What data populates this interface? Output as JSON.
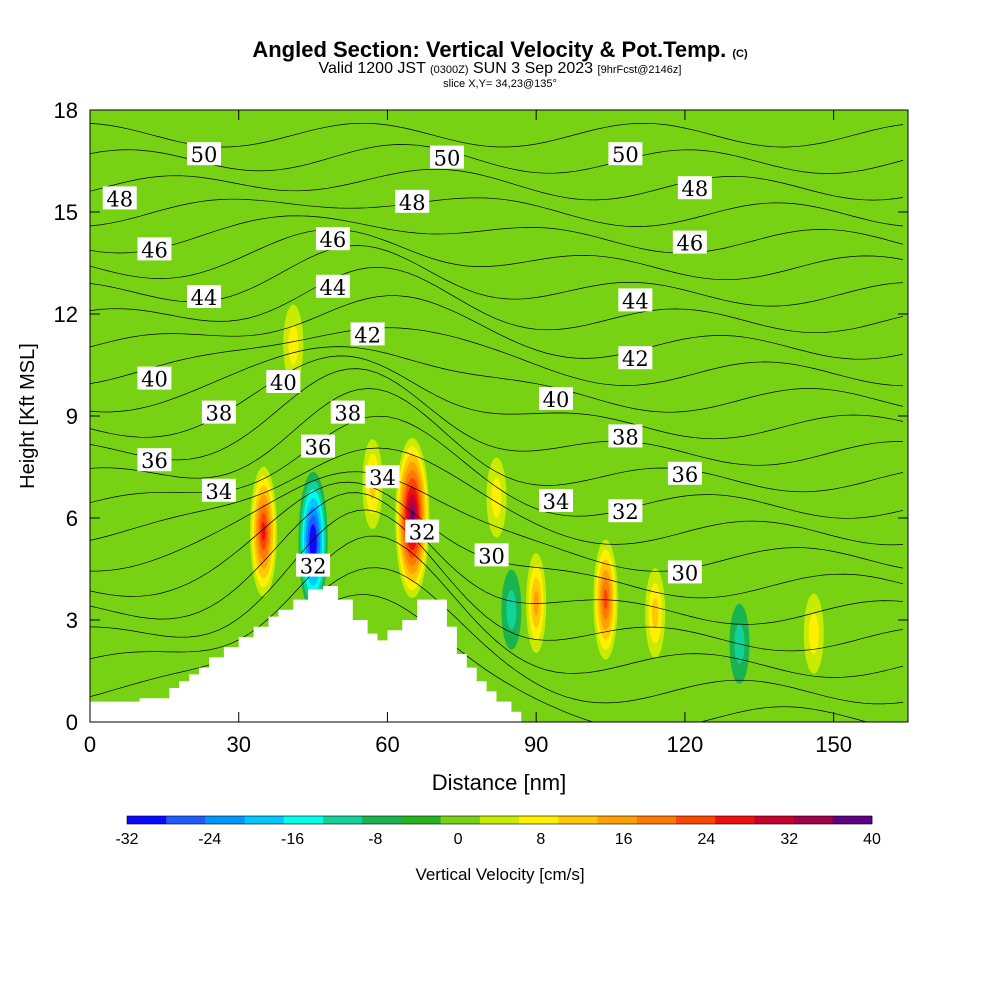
{
  "header": {
    "title": "Angled Section: Vertical Velocity & Pot.Temp.",
    "title_mark": "(C)",
    "subtitle_pre": "Valid 1200 JST",
    "subtitle_utc": "(0300Z)",
    "subtitle_date": "SUN 3 Sep 2023",
    "subtitle_fcst": "[9hrFcst@2146z]",
    "slice": "slice X,Y= 34,23@135°"
  },
  "chart_data": {
    "type": "heatmap",
    "xlabel": "Distance [nm]",
    "ylabel": "Height [Kft MSL]",
    "xlim": [
      0,
      165
    ],
    "ylim": [
      0,
      18
    ],
    "x_ticks": [
      0,
      30,
      60,
      90,
      120,
      150
    ],
    "y_ticks": [
      0,
      3,
      6,
      9,
      12,
      15,
      18
    ],
    "colorbar": {
      "label": "Vertical Velocity [cm/s]",
      "tick_labels": [
        "-32",
        "-24",
        "-16",
        "-8",
        "0",
        "8",
        "16",
        "24",
        "32",
        "40"
      ],
      "levels": [
        -32,
        -28,
        -24,
        -20,
        -16,
        -12,
        -8,
        -4,
        0,
        4,
        8,
        12,
        16,
        20,
        24,
        28,
        32,
        36,
        40
      ],
      "colors": [
        "#0a0aff",
        "#1e5cff",
        "#0096ff",
        "#00c8ff",
        "#00ffe6",
        "#10d29a",
        "#19b450",
        "#26b41e",
        "#78d214",
        "#c8eb00",
        "#fff000",
        "#ffc800",
        "#ffa000",
        "#ff7800",
        "#ff4600",
        "#ee1010",
        "#c8002d",
        "#a0004b",
        "#5f0085"
      ]
    },
    "terrain_profile": [
      [
        0,
        0.6
      ],
      [
        10,
        0.6
      ],
      [
        10,
        0.7
      ],
      [
        16,
        0.7
      ],
      [
        16,
        1.0
      ],
      [
        18,
        1.0
      ],
      [
        18,
        1.2
      ],
      [
        20,
        1.2
      ],
      [
        20,
        1.4
      ],
      [
        22,
        1.4
      ],
      [
        22,
        1.6
      ],
      [
        24,
        1.6
      ],
      [
        24,
        1.9
      ],
      [
        27,
        1.9
      ],
      [
        27,
        2.2
      ],
      [
        30,
        2.2
      ],
      [
        30,
        2.5
      ],
      [
        33,
        2.5
      ],
      [
        33,
        2.8
      ],
      [
        36,
        2.8
      ],
      [
        36,
        3.1
      ],
      [
        38,
        3.1
      ],
      [
        38,
        3.3
      ],
      [
        41,
        3.3
      ],
      [
        41,
        3.6
      ],
      [
        44,
        3.6
      ],
      [
        44,
        3.9
      ],
      [
        47,
        3.9
      ],
      [
        47,
        4.0
      ],
      [
        50,
        4.0
      ],
      [
        50,
        3.6
      ],
      [
        53,
        3.6
      ],
      [
        53,
        3.0
      ],
      [
        56,
        3.0
      ],
      [
        56,
        2.6
      ],
      [
        58,
        2.6
      ],
      [
        58,
        2.4
      ],
      [
        60,
        2.4
      ],
      [
        60,
        2.7
      ],
      [
        63,
        2.7
      ],
      [
        63,
        3.0
      ],
      [
        66,
        3.0
      ],
      [
        66,
        3.6
      ],
      [
        72,
        3.6
      ],
      [
        72,
        2.8
      ],
      [
        74,
        2.8
      ],
      [
        74,
        2.0
      ],
      [
        76,
        2.0
      ],
      [
        76,
        1.6
      ],
      [
        78,
        1.6
      ],
      [
        78,
        1.2
      ],
      [
        80,
        1.2
      ],
      [
        80,
        0.9
      ],
      [
        82,
        0.9
      ],
      [
        82,
        0.6
      ],
      [
        85,
        0.6
      ],
      [
        85,
        0.3
      ],
      [
        87,
        0.3
      ],
      [
        87,
        0
      ]
    ],
    "theta_contour_labels": [
      {
        "value": "50",
        "x": 23,
        "z": 16.7
      },
      {
        "value": "50",
        "x": 72,
        "z": 16.6
      },
      {
        "value": "50",
        "x": 108,
        "z": 16.7
      },
      {
        "value": "48",
        "x": 6,
        "z": 15.4
      },
      {
        "value": "48",
        "x": 65,
        "z": 15.3
      },
      {
        "value": "48",
        "x": 122,
        "z": 15.7
      },
      {
        "value": "46",
        "x": 13,
        "z": 13.9
      },
      {
        "value": "46",
        "x": 49,
        "z": 14.2
      },
      {
        "value": "46",
        "x": 121,
        "z": 14.1
      },
      {
        "value": "44",
        "x": 23,
        "z": 12.5
      },
      {
        "value": "44",
        "x": 49,
        "z": 12.8
      },
      {
        "value": "44",
        "x": 110,
        "z": 12.4
      },
      {
        "value": "42",
        "x": 56,
        "z": 11.4
      },
      {
        "value": "42",
        "x": 110,
        "z": 10.7
      },
      {
        "value": "40",
        "x": 13,
        "z": 10.1
      },
      {
        "value": "40",
        "x": 39,
        "z": 10.0
      },
      {
        "value": "40",
        "x": 94,
        "z": 9.5
      },
      {
        "value": "38",
        "x": 26,
        "z": 9.1
      },
      {
        "value": "38",
        "x": 52,
        "z": 9.1
      },
      {
        "value": "38",
        "x": 108,
        "z": 8.4
      },
      {
        "value": "36",
        "x": 13,
        "z": 7.7
      },
      {
        "value": "36",
        "x": 46,
        "z": 8.1
      },
      {
        "value": "36",
        "x": 120,
        "z": 7.3
      },
      {
        "value": "34",
        "x": 26,
        "z": 6.8
      },
      {
        "value": "34",
        "x": 59,
        "z": 7.2
      },
      {
        "value": "34",
        "x": 94,
        "z": 6.5
      },
      {
        "value": "32",
        "x": 45,
        "z": 4.6
      },
      {
        "value": "32",
        "x": 67,
        "z": 5.6
      },
      {
        "value": "32",
        "x": 108,
        "z": 6.2
      },
      {
        "value": "30",
        "x": 81,
        "z": 4.9
      },
      {
        "value": "30",
        "x": 120,
        "z": 4.4
      }
    ],
    "vertical_velocity_cells": [
      {
        "x": 35,
        "z": 5.6,
        "peak": 26
      },
      {
        "x": 45,
        "z": 5.3,
        "peak": -30
      },
      {
        "x": 65,
        "z": 6.0,
        "peak": 38
      },
      {
        "x": 57,
        "z": 7.0,
        "peak": 10
      },
      {
        "x": 90,
        "z": 3.5,
        "peak": 14
      },
      {
        "x": 104,
        "z": 3.6,
        "peak": 22
      },
      {
        "x": 114,
        "z": 3.2,
        "peak": 10
      },
      {
        "x": 85,
        "z": 3.3,
        "peak": -9
      },
      {
        "x": 131,
        "z": 2.3,
        "peak": -8
      },
      {
        "x": 146,
        "z": 2.6,
        "peak": 7
      },
      {
        "x": 41,
        "z": 11.1,
        "peak": 6
      },
      {
        "x": 82,
        "z": 6.6,
        "peak": 6
      }
    ]
  }
}
